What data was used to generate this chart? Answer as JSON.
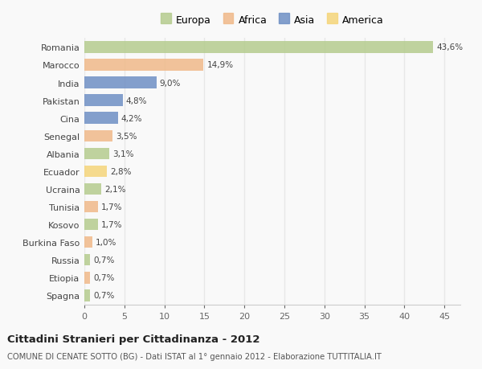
{
  "countries": [
    "Romania",
    "Marocco",
    "India",
    "Pakistan",
    "Cina",
    "Senegal",
    "Albania",
    "Ecuador",
    "Ucraina",
    "Tunisia",
    "Kosovo",
    "Burkina Faso",
    "Russia",
    "Etiopia",
    "Spagna"
  ],
  "values": [
    43.6,
    14.9,
    9.0,
    4.8,
    4.2,
    3.5,
    3.1,
    2.8,
    2.1,
    1.7,
    1.7,
    1.0,
    0.7,
    0.7,
    0.7
  ],
  "labels": [
    "43,6%",
    "14,9%",
    "9,0%",
    "4,8%",
    "4,2%",
    "3,5%",
    "3,1%",
    "2,8%",
    "2,1%",
    "1,7%",
    "1,7%",
    "1,0%",
    "0,7%",
    "0,7%",
    "0,7%"
  ],
  "colors": [
    "#b5cc8e",
    "#f0b989",
    "#6f8fc4",
    "#6f8fc4",
    "#6f8fc4",
    "#f0b989",
    "#b5cc8e",
    "#f5d57a",
    "#b5cc8e",
    "#f0b989",
    "#b5cc8e",
    "#f0b989",
    "#b5cc8e",
    "#f0b989",
    "#b5cc8e"
  ],
  "legend_labels": [
    "Europa",
    "Africa",
    "Asia",
    "America"
  ],
  "legend_colors": [
    "#b5cc8e",
    "#f0b989",
    "#6f8fc4",
    "#f5d57a"
  ],
  "title": "Cittadini Stranieri per Cittadinanza - 2012",
  "subtitle": "COMUNE DI CENATE SOTTO (BG) - Dati ISTAT al 1° gennaio 2012 - Elaborazione TUTTITALIA.IT",
  "xlim": [
    0,
    47
  ],
  "xticks": [
    0,
    5,
    10,
    15,
    20,
    25,
    30,
    35,
    40,
    45
  ],
  "background_color": "#f9f9f9",
  "grid_color": "#e8e8e8",
  "bar_height": 0.65
}
